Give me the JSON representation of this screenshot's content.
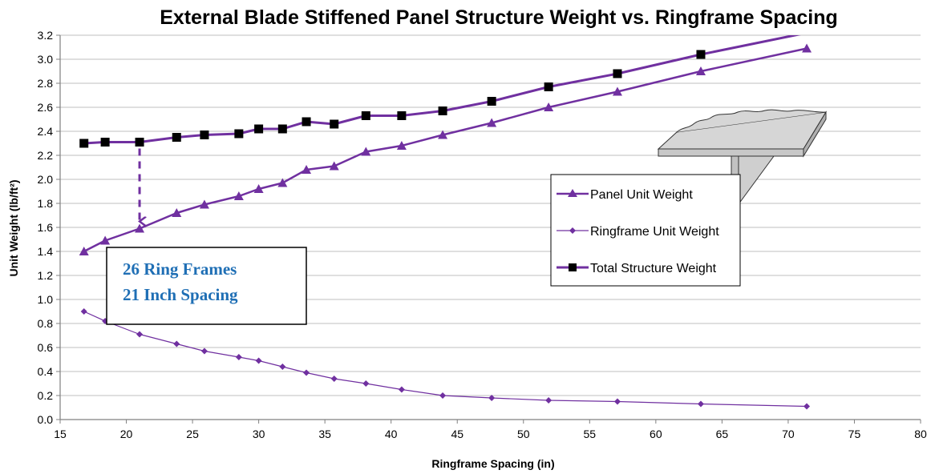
{
  "chart_data": {
    "type": "line",
    "title": "External Blade Stiffened Panel Structure Weight vs. Ringframe Spacing",
    "xlabel": "Ringframe Spacing (in)",
    "ylabel": "Unit Weight (lb/ft²)",
    "xlim": [
      15,
      80
    ],
    "ylim": [
      0.0,
      3.2
    ],
    "x_ticks": [
      "15",
      "20",
      "25",
      "30",
      "35",
      "40",
      "45",
      "50",
      "55",
      "60",
      "65",
      "70",
      "75",
      "80"
    ],
    "y_ticks": [
      "0.0",
      "0.2",
      "0.4",
      "0.6",
      "0.8",
      "1.0",
      "1.2",
      "1.4",
      "1.6",
      "1.8",
      "2.0",
      "2.2",
      "2.4",
      "2.6",
      "2.8",
      "3.0",
      "3.2"
    ],
    "grid": "horizontal",
    "legend_position": "right",
    "series": [
      {
        "name": "Panel Unit Weight",
        "marker": "triangle",
        "color": "#7030a0",
        "x": [
          16.8,
          18.4,
          21.0,
          23.8,
          25.9,
          28.5,
          30.0,
          31.8,
          33.6,
          35.7,
          38.1,
          40.8,
          43.9,
          47.6,
          51.9,
          57.1,
          63.4,
          71.4
        ],
        "y": [
          1.4,
          1.49,
          1.59,
          1.72,
          1.79,
          1.86,
          1.92,
          1.97,
          2.08,
          2.11,
          2.23,
          2.28,
          2.37,
          2.47,
          2.6,
          2.73,
          2.9,
          3.09
        ]
      },
      {
        "name": "Ringframe Unit Weight",
        "marker": "diamond",
        "color": "#7030a0",
        "x": [
          16.8,
          18.4,
          21.0,
          23.8,
          25.9,
          28.5,
          30.0,
          31.8,
          33.6,
          35.7,
          38.1,
          40.8,
          43.9,
          47.6,
          51.9,
          57.1,
          63.4,
          71.4
        ],
        "y": [
          0.9,
          0.82,
          0.71,
          0.63,
          0.57,
          0.52,
          0.49,
          0.44,
          0.39,
          0.34,
          0.3,
          0.25,
          0.2,
          0.18,
          0.16,
          0.15,
          0.13,
          0.11
        ]
      },
      {
        "name": "Total Structure Weight",
        "marker": "square",
        "color": "#7030a0",
        "x": [
          16.8,
          18.4,
          21.0,
          23.8,
          25.9,
          28.5,
          30.0,
          31.8,
          33.6,
          35.7,
          38.1,
          40.8,
          43.9,
          47.6,
          51.9,
          57.1,
          63.4,
          71.4
        ],
        "y": [
          2.3,
          2.31,
          2.31,
          2.35,
          2.37,
          2.38,
          2.42,
          2.42,
          2.48,
          2.46,
          2.53,
          2.53,
          2.57,
          2.65,
          2.77,
          2.88,
          3.04,
          3.22
        ]
      }
    ],
    "annotation": {
      "lines": [
        "26 Ring Frames",
        "21 Inch Spacing"
      ],
      "color": "#1f6fb5",
      "arrow_x": 21.0,
      "arrow_from_y": 2.31,
      "arrow_to_y": 1.59
    }
  }
}
